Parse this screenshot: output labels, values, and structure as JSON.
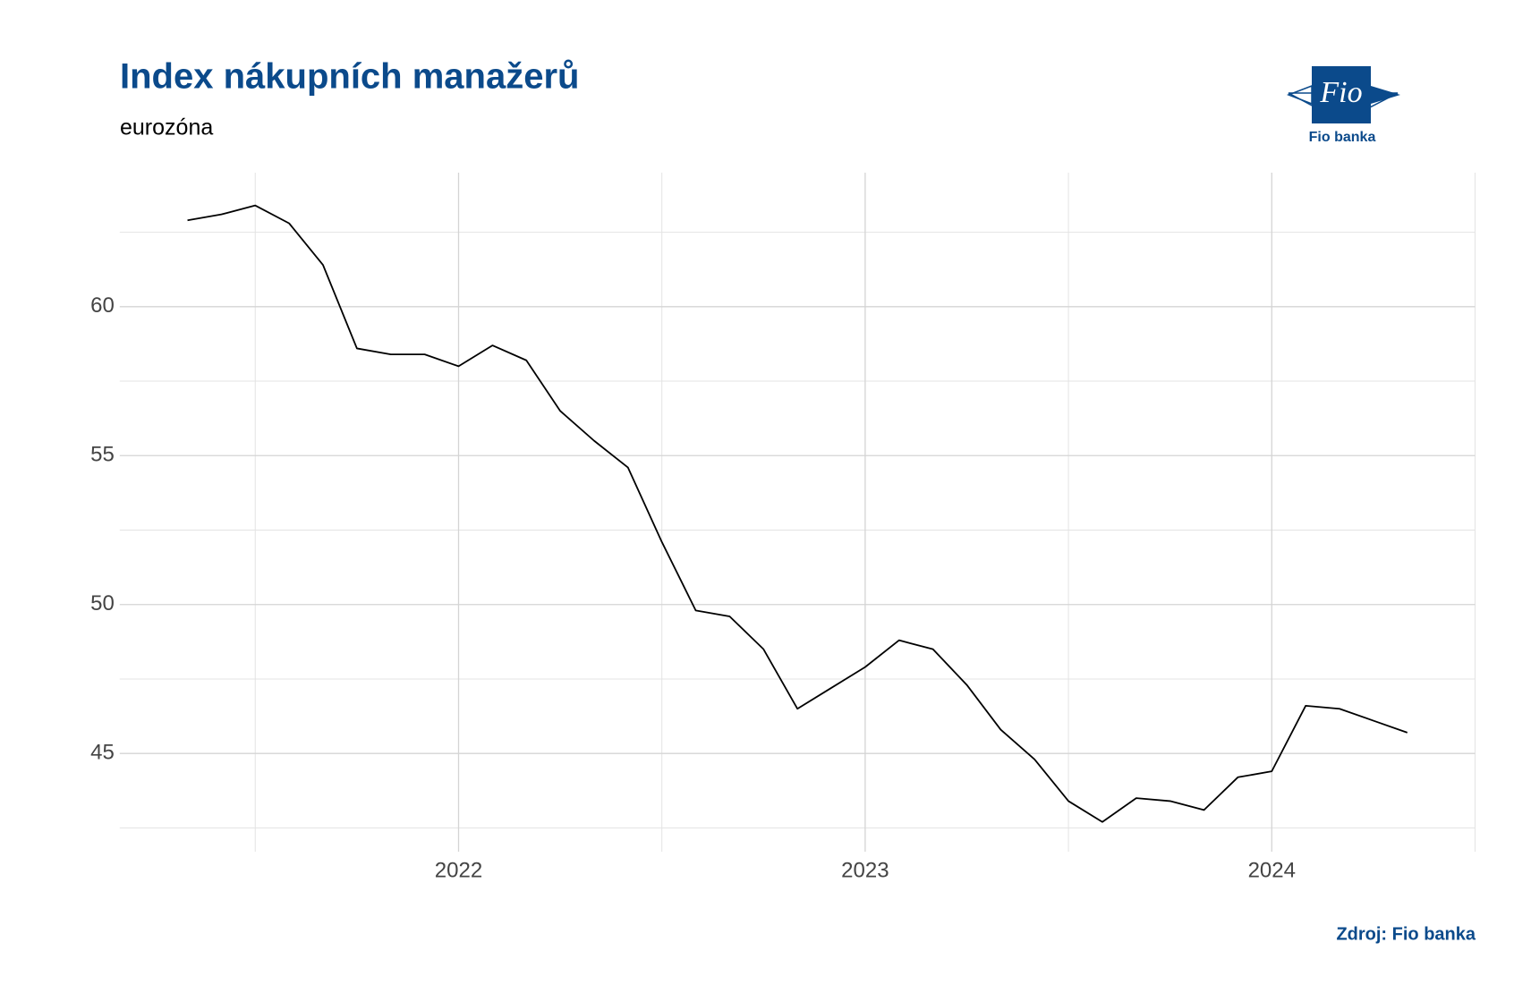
{
  "chart_data": {
    "type": "line",
    "title": "Index nákupních manažerů",
    "subtitle": "eurozóna",
    "source": "Zdroj: Fio banka",
    "logo": {
      "mark": "Fio",
      "name": "Fio banka"
    },
    "x": [
      "2021-05",
      "2021-06",
      "2021-07",
      "2021-08",
      "2021-09",
      "2021-10",
      "2021-11",
      "2021-12",
      "2022-01",
      "2022-02",
      "2022-03",
      "2022-04",
      "2022-05",
      "2022-06",
      "2022-07",
      "2022-08",
      "2022-09",
      "2022-10",
      "2022-11",
      "2022-12",
      "2023-01",
      "2023-02",
      "2023-03",
      "2023-04",
      "2023-05",
      "2023-06",
      "2023-07",
      "2023-08",
      "2023-09",
      "2023-10",
      "2023-11",
      "2023-12",
      "2024-01",
      "2024-02",
      "2024-03",
      "2024-04",
      "2024-05"
    ],
    "series": [
      {
        "name": "eurozóna",
        "color": "#000000",
        "values": [
          62.9,
          63.1,
          63.4,
          62.8,
          61.4,
          58.6,
          58.4,
          58.4,
          58.0,
          58.7,
          58.2,
          56.5,
          55.5,
          54.6,
          52.1,
          49.8,
          49.6,
          48.5,
          46.5,
          47.2,
          47.9,
          48.8,
          48.5,
          47.3,
          45.8,
          44.8,
          43.4,
          42.7,
          43.5,
          43.4,
          43.1,
          44.2,
          44.4,
          46.6,
          46.5,
          46.1,
          45.7
        ]
      }
    ],
    "xlim": [
      "2021-03",
      "2024-07"
    ],
    "xticks": [
      {
        "value": "2022-01",
        "label": "2022"
      },
      {
        "value": "2023-01",
        "label": "2023"
      },
      {
        "value": "2024-01",
        "label": "2024"
      }
    ],
    "ylim": [
      41.7,
      64.5
    ],
    "yticks": [
      45,
      50,
      55,
      60
    ],
    "grid": true
  }
}
